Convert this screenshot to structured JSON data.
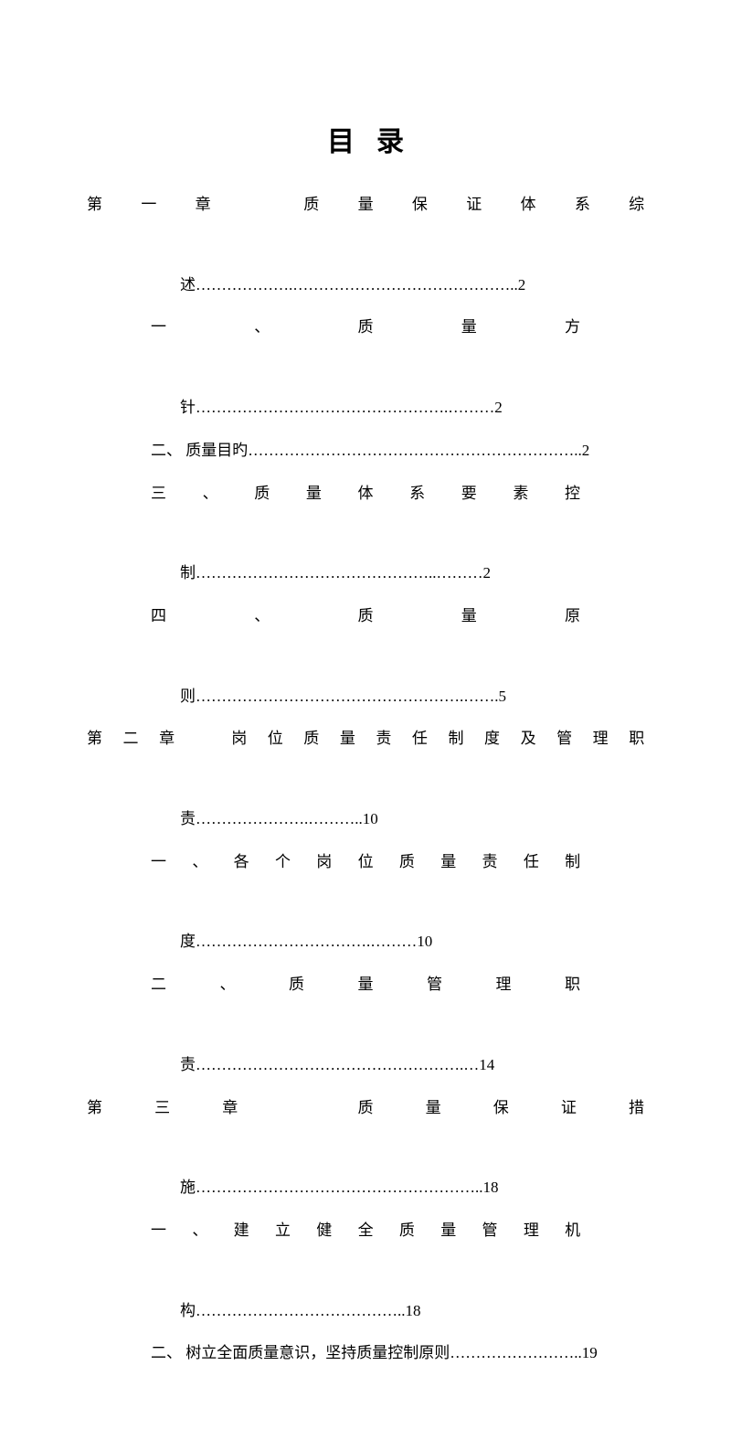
{
  "title": "目录",
  "entries": [
    {
      "prefix": "第一章　质量保证体系综",
      "suffix": "述……………….……………………………………..2",
      "prefix_width": 610
    },
    {
      "prefix": "一、质量方",
      "suffix": "针………………………………………….………2",
      "indent": 70,
      "prefix_width": 540
    },
    {
      "prefix_plain": "二、 质量目旳",
      "suffix": "………………………………………………………..2",
      "indent": 70
    },
    {
      "prefix": "三、质量体系要素控",
      "suffix": "制………………………………………..………2",
      "indent": 70,
      "prefix_width": 540
    },
    {
      "prefix": "四、质量原",
      "suffix": "则…………………………………………….…….5",
      "indent": 70,
      "prefix_width": 540
    },
    {
      "prefix": "第二章　岗位质量责任制度及管理职",
      "suffix": "责………………….………..10",
      "prefix_width": 610
    },
    {
      "prefix": "一、各个岗位质量责任制",
      "suffix": "度…………………………….………10",
      "indent": 70,
      "prefix_width": 540
    },
    {
      "prefix": "二、质量管理职",
      "suffix": "责…………………………………………….…14",
      "indent": 70,
      "prefix_width": 540
    },
    {
      "prefix": "第三章　质量保证措",
      "suffix": "施………………………………………………..18",
      "prefix_width": 610
    },
    {
      "prefix": "一、建立健全质量管理机",
      "suffix": "构…………………………………..18",
      "indent": 70,
      "prefix_width": 540
    },
    {
      "prefix_plain": "二、 树立全面质量意识，坚持质量控制原则",
      "suffix": "……………………..19",
      "indent": 70
    }
  ]
}
